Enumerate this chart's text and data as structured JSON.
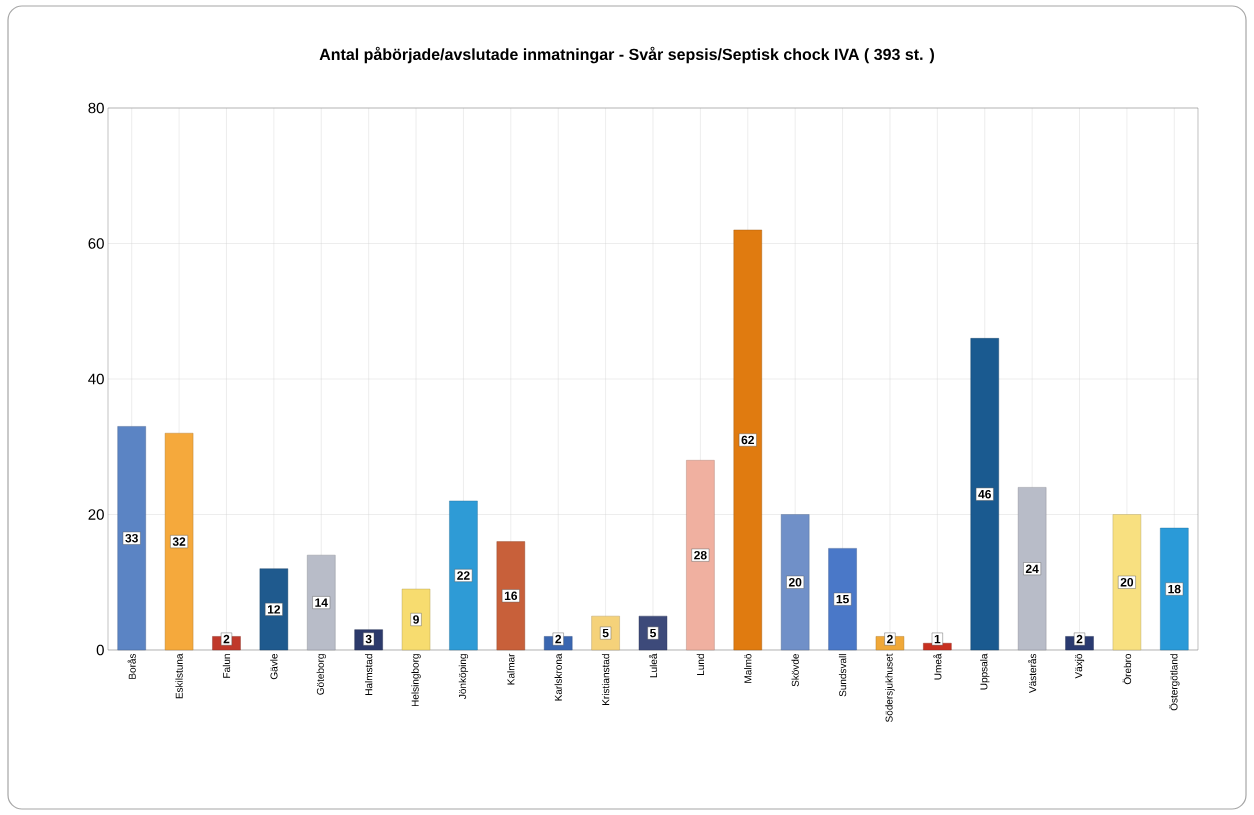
{
  "chart_data": {
    "type": "bar",
    "title": "Antal påbörjade/avslutade inmatningar - Svår sepsis/Septisk chock IVA ( 393 st. )",
    "categories": [
      "Borås",
      "Eskilstuna",
      "Falun",
      "Gävle",
      "Göteborg",
      "Halmstad",
      "Helsingborg",
      "Jönköping",
      "Kalmar",
      "Karlskrona",
      "Kristianstad",
      "Luleå",
      "Lund",
      "Malmö",
      "Skövde",
      "Sundsvall",
      "Södersjukhuset",
      "Umeå",
      "Uppsala",
      "Västerås",
      "Växjö",
      "Örebro",
      "Östergötland"
    ],
    "values": [
      33,
      32,
      2,
      12,
      14,
      3,
      9,
      22,
      16,
      2,
      5,
      5,
      28,
      62,
      20,
      15,
      2,
      1,
      46,
      24,
      2,
      20,
      18
    ],
    "colors": [
      "#5b84c4",
      "#f5a93c",
      "#c0392b",
      "#1f5a8e",
      "#b8bcc8",
      "#2c3a6b",
      "#f7dc6f",
      "#2e9bd6",
      "#c8603a",
      "#3a66b0",
      "#f5d27a",
      "#3d4a7a",
      "#f0b0a0",
      "#e07b10",
      "#7090c8",
      "#4a78c8",
      "#f0a838",
      "#c83020",
      "#1a5a90",
      "#b8bcc8",
      "#2a3a70",
      "#f8e080",
      "#2a9ad8"
    ],
    "ylim": [
      0,
      80
    ],
    "yticks": [
      0,
      20,
      40,
      60,
      80
    ],
    "grid": true,
    "data_labels": true
  }
}
